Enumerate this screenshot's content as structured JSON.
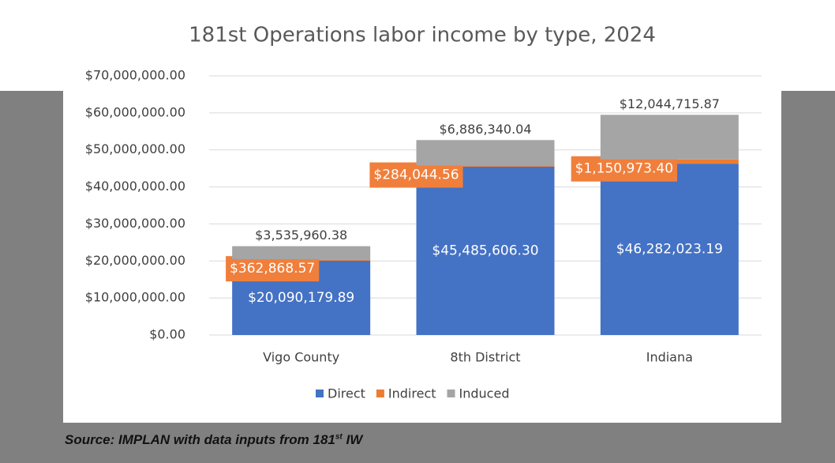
{
  "chart_data": {
    "type": "stacked_bar",
    "title": "181st Operations labor income by type, 2024",
    "categories": [
      "Vigo County",
      "8th District",
      "Indiana"
    ],
    "series": [
      {
        "name": "Direct",
        "color": "#4472c4",
        "values": [
          20090179.89,
          45485606.3,
          46282023.19
        ],
        "value_labels": [
          "$20,090,179.89",
          "$45,485,606.30",
          "$46,282,023.19"
        ]
      },
      {
        "name": "Indirect",
        "color": "#ed7d31",
        "values": [
          362868.57,
          284044.56,
          1150973.4
        ],
        "value_labels": [
          "$362,868.57",
          "$284,044.56",
          "$1,150,973.40"
        ]
      },
      {
        "name": "Induced",
        "color": "#a5a5a5",
        "values": [
          3535960.38,
          6886340.04,
          12044715.87
        ],
        "value_labels": [
          "$3,535,960.38",
          "$6,886,340.04",
          "$12,044,715.87"
        ]
      }
    ],
    "ylim": [
      0,
      70000000
    ],
    "yticks": [
      {
        "value": 0,
        "label": "$0.00"
      },
      {
        "value": 10000000,
        "label": "$10,000,000.00"
      },
      {
        "value": 20000000,
        "label": "$20,000,000.00"
      },
      {
        "value": 30000000,
        "label": "$30,000,000.00"
      },
      {
        "value": 40000000,
        "label": "$40,000,000.00"
      },
      {
        "value": 50000000,
        "label": "$50,000,000.00"
      },
      {
        "value": 60000000,
        "label": "$60,000,000.00"
      },
      {
        "value": 70000000,
        "label": "$70,000,000.00"
      }
    ],
    "grid": true,
    "legend": "bottom"
  },
  "source": [
    "Source: IMPLAN with data inputs from 181",
    "st",
    " IW"
  ]
}
